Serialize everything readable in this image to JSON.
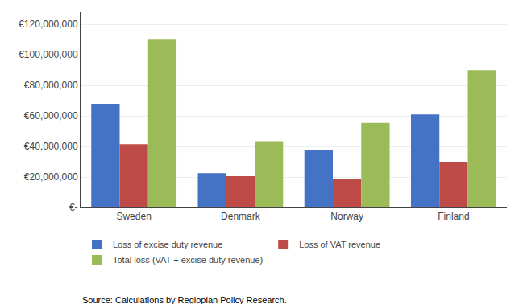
{
  "chart_data": {
    "type": "bar",
    "categories": [
      "Sweden",
      "Denmark",
      "Norway",
      "Finland"
    ],
    "series": [
      {
        "name": "Loss of excise duty revenue",
        "color": "#4472C4",
        "values": [
          68000000,
          22500000,
          37500000,
          61000000
        ]
      },
      {
        "name": "Loss of VAT revenue",
        "color": "#BE4B48",
        "values": [
          41500000,
          20500000,
          18500000,
          29500000
        ]
      },
      {
        "name": "Total loss (VAT + excise duty revenue)",
        "color": "#9BBB59",
        "values": [
          110000000,
          43500000,
          55500000,
          90000000
        ]
      }
    ],
    "ylim": [
      0,
      128000000
    ],
    "yticks": [
      {
        "value": 0,
        "label": "€-"
      },
      {
        "value": 20000000,
        "label": "€20,000,000"
      },
      {
        "value": 40000000,
        "label": "€40,000,000"
      },
      {
        "value": 60000000,
        "label": "€60,000,000"
      },
      {
        "value": 80000000,
        "label": "€80,000,000"
      },
      {
        "value": 100000000,
        "label": "€100,000,000"
      },
      {
        "value": 120000000,
        "label": "€120,000,000"
      }
    ],
    "grid": true,
    "legend": "bottom",
    "annotations": [
      "Source: Calculations by Regioplan Policy Research."
    ]
  }
}
